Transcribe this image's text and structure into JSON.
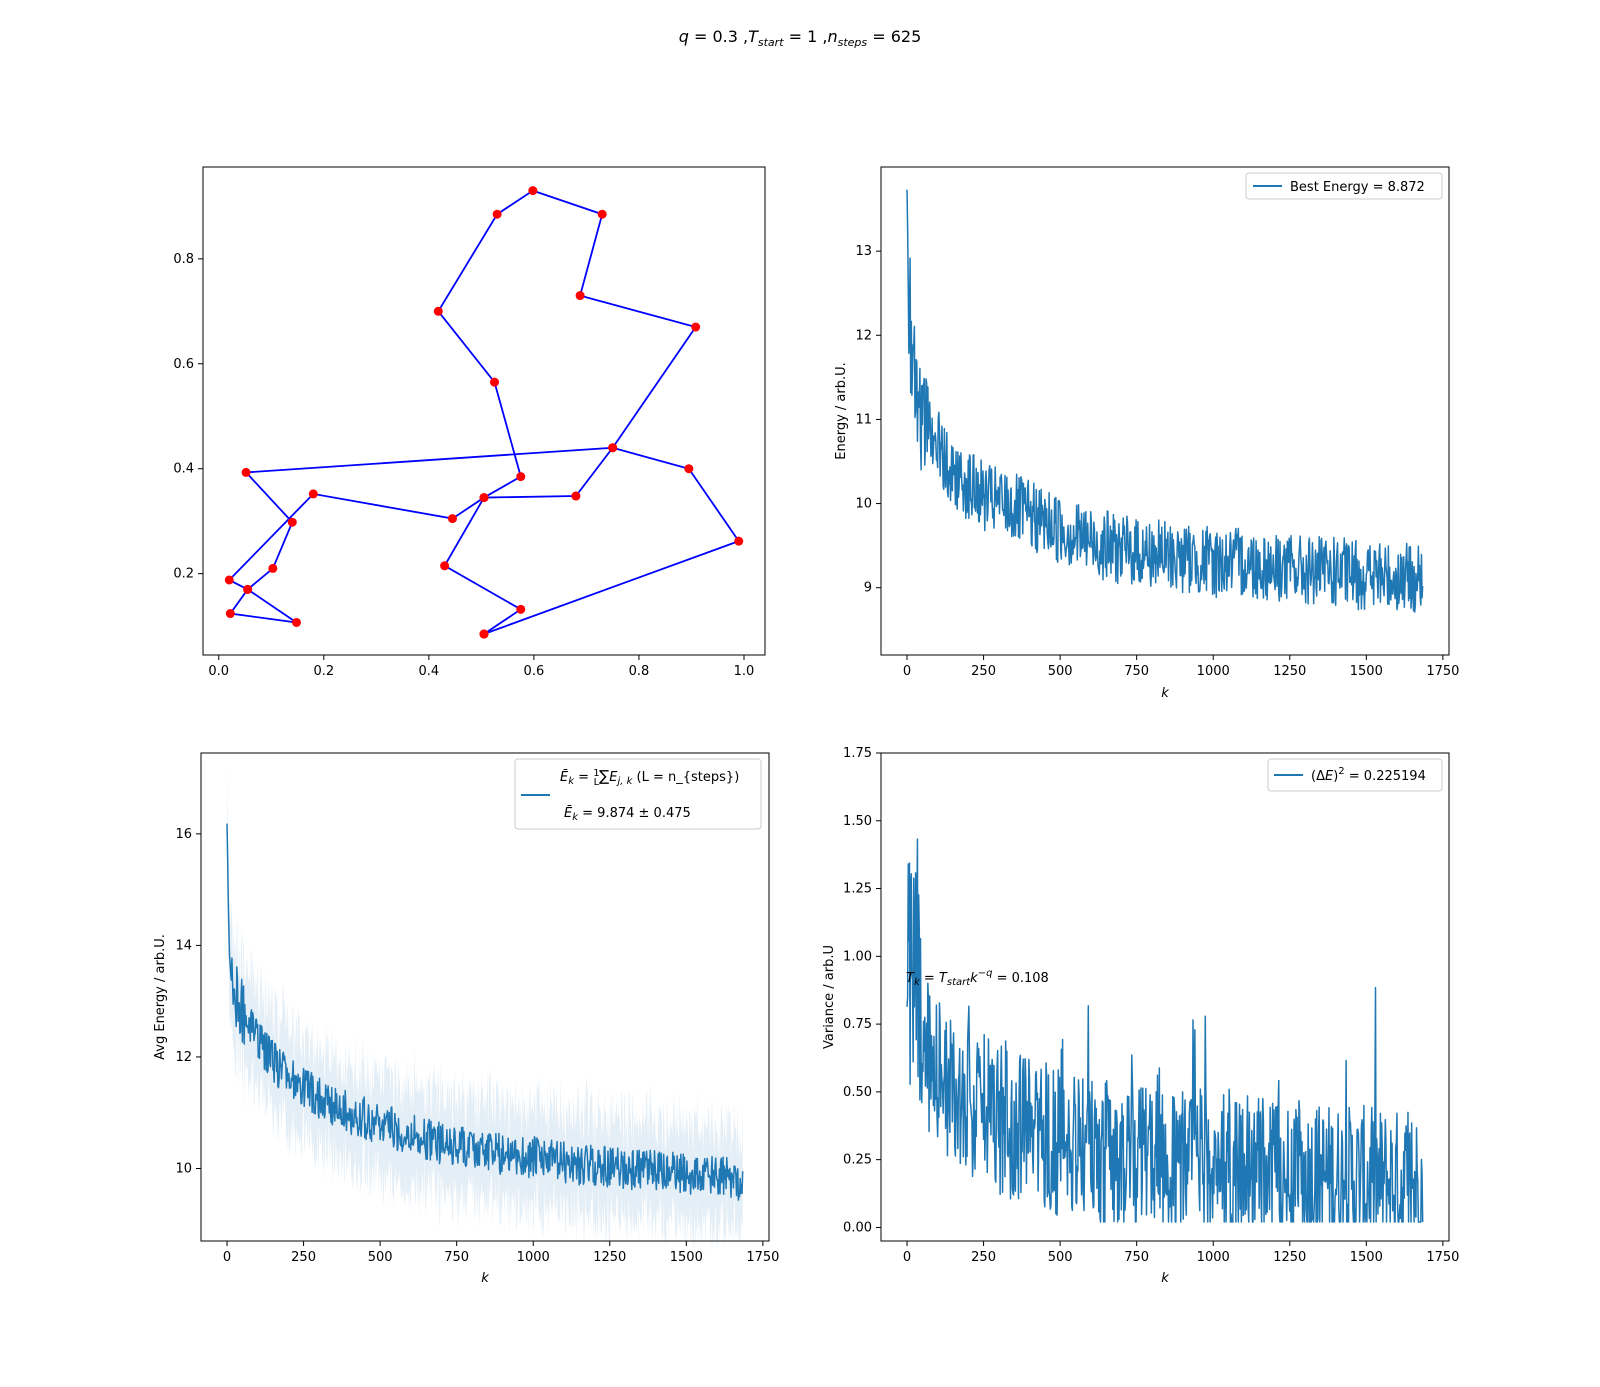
{
  "figure": {
    "title": {
      "q": "0.3",
      "T_start": "1",
      "n_steps": "625"
    }
  },
  "chart_data": [
    {
      "id": "route",
      "type": "scatter",
      "connected_line": true,
      "line_color": "#0000ff",
      "marker_color": "#ff0000",
      "xlim": [
        -0.03,
        1.04
      ],
      "ylim": [
        0.045,
        0.975
      ],
      "xticks": [
        0.0,
        0.2,
        0.4,
        0.6,
        0.8,
        1.0
      ],
      "xtick_labels": [
        "0.0",
        "0.2",
        "0.4",
        "0.6",
        "0.8",
        "1.0"
      ],
      "yticks": [
        0.2,
        0.4,
        0.6,
        0.8
      ],
      "ytick_labels": [
        "0.2",
        "0.4",
        "0.6",
        "0.8"
      ],
      "xlabel": "",
      "ylabel": "",
      "title": "",
      "points": [
        [
          0.505,
          0.085
        ],
        [
          0.575,
          0.132
        ],
        [
          0.43,
          0.215
        ],
        [
          0.505,
          0.345
        ],
        [
          0.575,
          0.385
        ],
        [
          0.525,
          0.565
        ],
        [
          0.418,
          0.7
        ],
        [
          0.53,
          0.885
        ],
        [
          0.598,
          0.93
        ],
        [
          0.73,
          0.885
        ],
        [
          0.688,
          0.73
        ],
        [
          0.908,
          0.67
        ],
        [
          0.75,
          0.44
        ],
        [
          0.052,
          0.393
        ],
        [
          0.14,
          0.298
        ],
        [
          0.103,
          0.21
        ],
        [
          0.055,
          0.17
        ],
        [
          0.148,
          0.107
        ],
        [
          0.022,
          0.124
        ],
        [
          0.055,
          0.17
        ],
        [
          0.02,
          0.188
        ],
        [
          0.18,
          0.352
        ],
        [
          0.445,
          0.305
        ],
        [
          0.505,
          0.345
        ],
        [
          0.68,
          0.348
        ],
        [
          0.75,
          0.44
        ],
        [
          0.895,
          0.4
        ],
        [
          0.99,
          0.262
        ],
        [
          0.505,
          0.085
        ]
      ]
    },
    {
      "id": "energy",
      "type": "line",
      "color": "#1f77b4",
      "xlim": [
        -85,
        1770
      ],
      "ylim": [
        8.2,
        14.0
      ],
      "xticks": [
        0,
        250,
        500,
        750,
        1000,
        1250,
        1500,
        1750
      ],
      "xtick_labels": [
        "0",
        "250",
        "500",
        "750",
        "1000",
        "1250",
        "1500",
        "1750"
      ],
      "yticks": [
        9,
        10,
        11,
        12,
        13
      ],
      "ytick_labels": [
        "9",
        "10",
        "11",
        "12",
        "13"
      ],
      "xlabel": "k",
      "ylabel": "Energy / arb.U.",
      "legend": {
        "label": "Best Energy = 8.872",
        "position": "upper right"
      },
      "series": {
        "x": [
          0,
          5,
          10,
          15,
          20,
          30,
          45,
          60,
          80,
          100,
          130,
          170,
          210,
          260,
          320,
          400,
          500,
          600,
          700,
          800,
          900,
          1000,
          1100,
          1200,
          1300,
          1400,
          1500,
          1600,
          1684
        ],
        "values": [
          13.75,
          11.9,
          12.3,
          11.5,
          11.8,
          11.3,
          11.0,
          11.1,
          10.8,
          10.7,
          10.5,
          10.3,
          10.2,
          10.05,
          10.0,
          9.85,
          9.7,
          9.55,
          9.45,
          9.4,
          9.35,
          9.3,
          9.3,
          9.25,
          9.2,
          9.18,
          9.15,
          9.12,
          9.1
        ],
        "noise_amplitude": 0.42
      }
    },
    {
      "id": "avg_energy",
      "type": "line",
      "color": "#1f77b4",
      "band": true,
      "xlim": [
        -85,
        1770
      ],
      "ylim": [
        8.7,
        17.45
      ],
      "xticks": [
        0,
        250,
        500,
        750,
        1000,
        1250,
        1500,
        1750
      ],
      "xtick_labels": [
        "0",
        "250",
        "500",
        "750",
        "1000",
        "1250",
        "1500",
        "1750"
      ],
      "yticks": [
        10,
        12,
        14,
        16
      ],
      "ytick_labels": [
        "10",
        "12",
        "14",
        "16"
      ],
      "xlabel": "k",
      "ylabel": "Avg Energy / arb.U.",
      "legend": {
        "line1": "(L = n_{steps})",
        "line2": "= 9.874 ± 0.475",
        "position": "upper right"
      },
      "series": {
        "x": [
          0,
          3,
          8,
          15,
          25,
          40,
          60,
          80,
          100,
          130,
          170,
          210,
          260,
          320,
          400,
          500,
          600,
          700,
          800,
          900,
          1000,
          1100,
          1200,
          1300,
          1400,
          1500,
          1600,
          1684
        ],
        "values": [
          16.0,
          14.8,
          14.0,
          13.6,
          13.2,
          12.9,
          12.7,
          12.5,
          12.3,
          12.1,
          11.8,
          11.6,
          11.4,
          11.2,
          11.0,
          10.8,
          10.6,
          10.45,
          10.35,
          10.25,
          10.2,
          10.1,
          10.05,
          10.0,
          9.95,
          9.9,
          9.85,
          9.8
        ],
        "noise_amplitude": 0.38,
        "band_halfwidth": 0.9
      }
    },
    {
      "id": "variance",
      "type": "line",
      "color": "#1f77b4",
      "xlim": [
        -85,
        1770
      ],
      "ylim": [
        -0.05,
        1.75
      ],
      "xticks": [
        0,
        250,
        500,
        750,
        1000,
        1250,
        1500,
        1750
      ],
      "xtick_labels": [
        "0",
        "250",
        "500",
        "750",
        "1000",
        "1250",
        "1500",
        "1750"
      ],
      "yticks": [
        0.0,
        0.25,
        0.5,
        0.75,
        1.0,
        1.25,
        1.5,
        1.75
      ],
      "ytick_labels": [
        "0.00",
        "0.25",
        "0.50",
        "0.75",
        "1.00",
        "1.25",
        "1.50",
        "1.75"
      ],
      "xlabel": "k",
      "ylabel": "Variance / arb.U",
      "legend": {
        "label": "= 0.225194",
        "position": "upper right"
      },
      "annotation": {
        "text": "= 0.108"
      },
      "series": {
        "x": [
          0,
          5,
          15,
          30,
          50,
          80,
          120,
          170,
          230,
          300,
          400,
          500,
          600,
          700,
          800,
          900,
          1000,
          1100,
          1200,
          1300,
          1400,
          1500,
          1600,
          1684
        ],
        "values": [
          1.2,
          1.0,
          0.95,
          0.85,
          0.7,
          0.6,
          0.55,
          0.5,
          0.45,
          0.4,
          0.35,
          0.32,
          0.28,
          0.26,
          0.25,
          0.24,
          0.22,
          0.21,
          0.2,
          0.19,
          0.18,
          0.17,
          0.16,
          0.15
        ],
        "noise_amplitude": 0.28
      }
    }
  ]
}
